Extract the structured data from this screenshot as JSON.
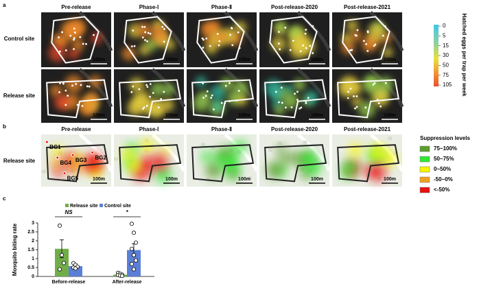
{
  "panel_a": {
    "label": "a",
    "columns": [
      "Pre-release",
      "Phase-Ⅰ",
      "Phase-Ⅱ",
      "Post-release-2020",
      "Post-release-2021"
    ],
    "rows": [
      "Control site",
      "Release site"
    ],
    "scale_bar": "100m",
    "colorbar": {
      "title": "Hatched eggs per trap per week",
      "ticks": [
        0,
        5,
        15,
        30,
        50,
        75,
        105
      ]
    }
  },
  "panel_b": {
    "label": "b",
    "row": "Release site",
    "traps": [
      "BG1",
      "BG2",
      "BG3",
      "BG4",
      "BG5"
    ],
    "legend": {
      "title": "Suppression levels",
      "items": [
        {
          "label": "75~100%",
          "color": "#5c9e2e"
        },
        {
          "label": "50~75%",
          "color": "#33e633"
        },
        {
          "label": "0~50%",
          "color": "#f5f500"
        },
        {
          "label": "-50~0%",
          "color": "#f0a020"
        },
        {
          "label": "<-50%",
          "color": "#e81010"
        }
      ]
    }
  },
  "panel_c": {
    "label": "c"
  },
  "chart_data": {
    "type": "bar",
    "y_label": "Mosquito biting rate",
    "categories": [
      "Before-release",
      "After-release"
    ],
    "series": [
      {
        "name": "Release site",
        "color": "#70ad47",
        "values": [
          1.55,
          0.1
        ],
        "errors": [
          0.5,
          0.05
        ],
        "points": [
          [
            2.85,
            1.2,
            0.75,
            0.4
          ],
          [
            0.2,
            0.15,
            0.1,
            0.08,
            0.05,
            0.03
          ]
        ]
      },
      {
        "name": "Control site",
        "color": "#5b7fd6",
        "values": [
          0.58,
          1.48
        ],
        "errors": [
          0.12,
          0.35
        ],
        "points": [
          [
            0.75,
            0.65,
            0.55,
            0.5,
            0.45
          ],
          [
            2.95,
            2.45,
            1.9,
            1.55,
            1.2,
            0.9,
            0.7,
            0.4
          ]
        ]
      }
    ],
    "significance": [
      "NS",
      "*"
    ],
    "ylim": [
      0,
      3
    ],
    "yticks": [
      0,
      0.5,
      1,
      1.5,
      2,
      2.5,
      3
    ]
  }
}
